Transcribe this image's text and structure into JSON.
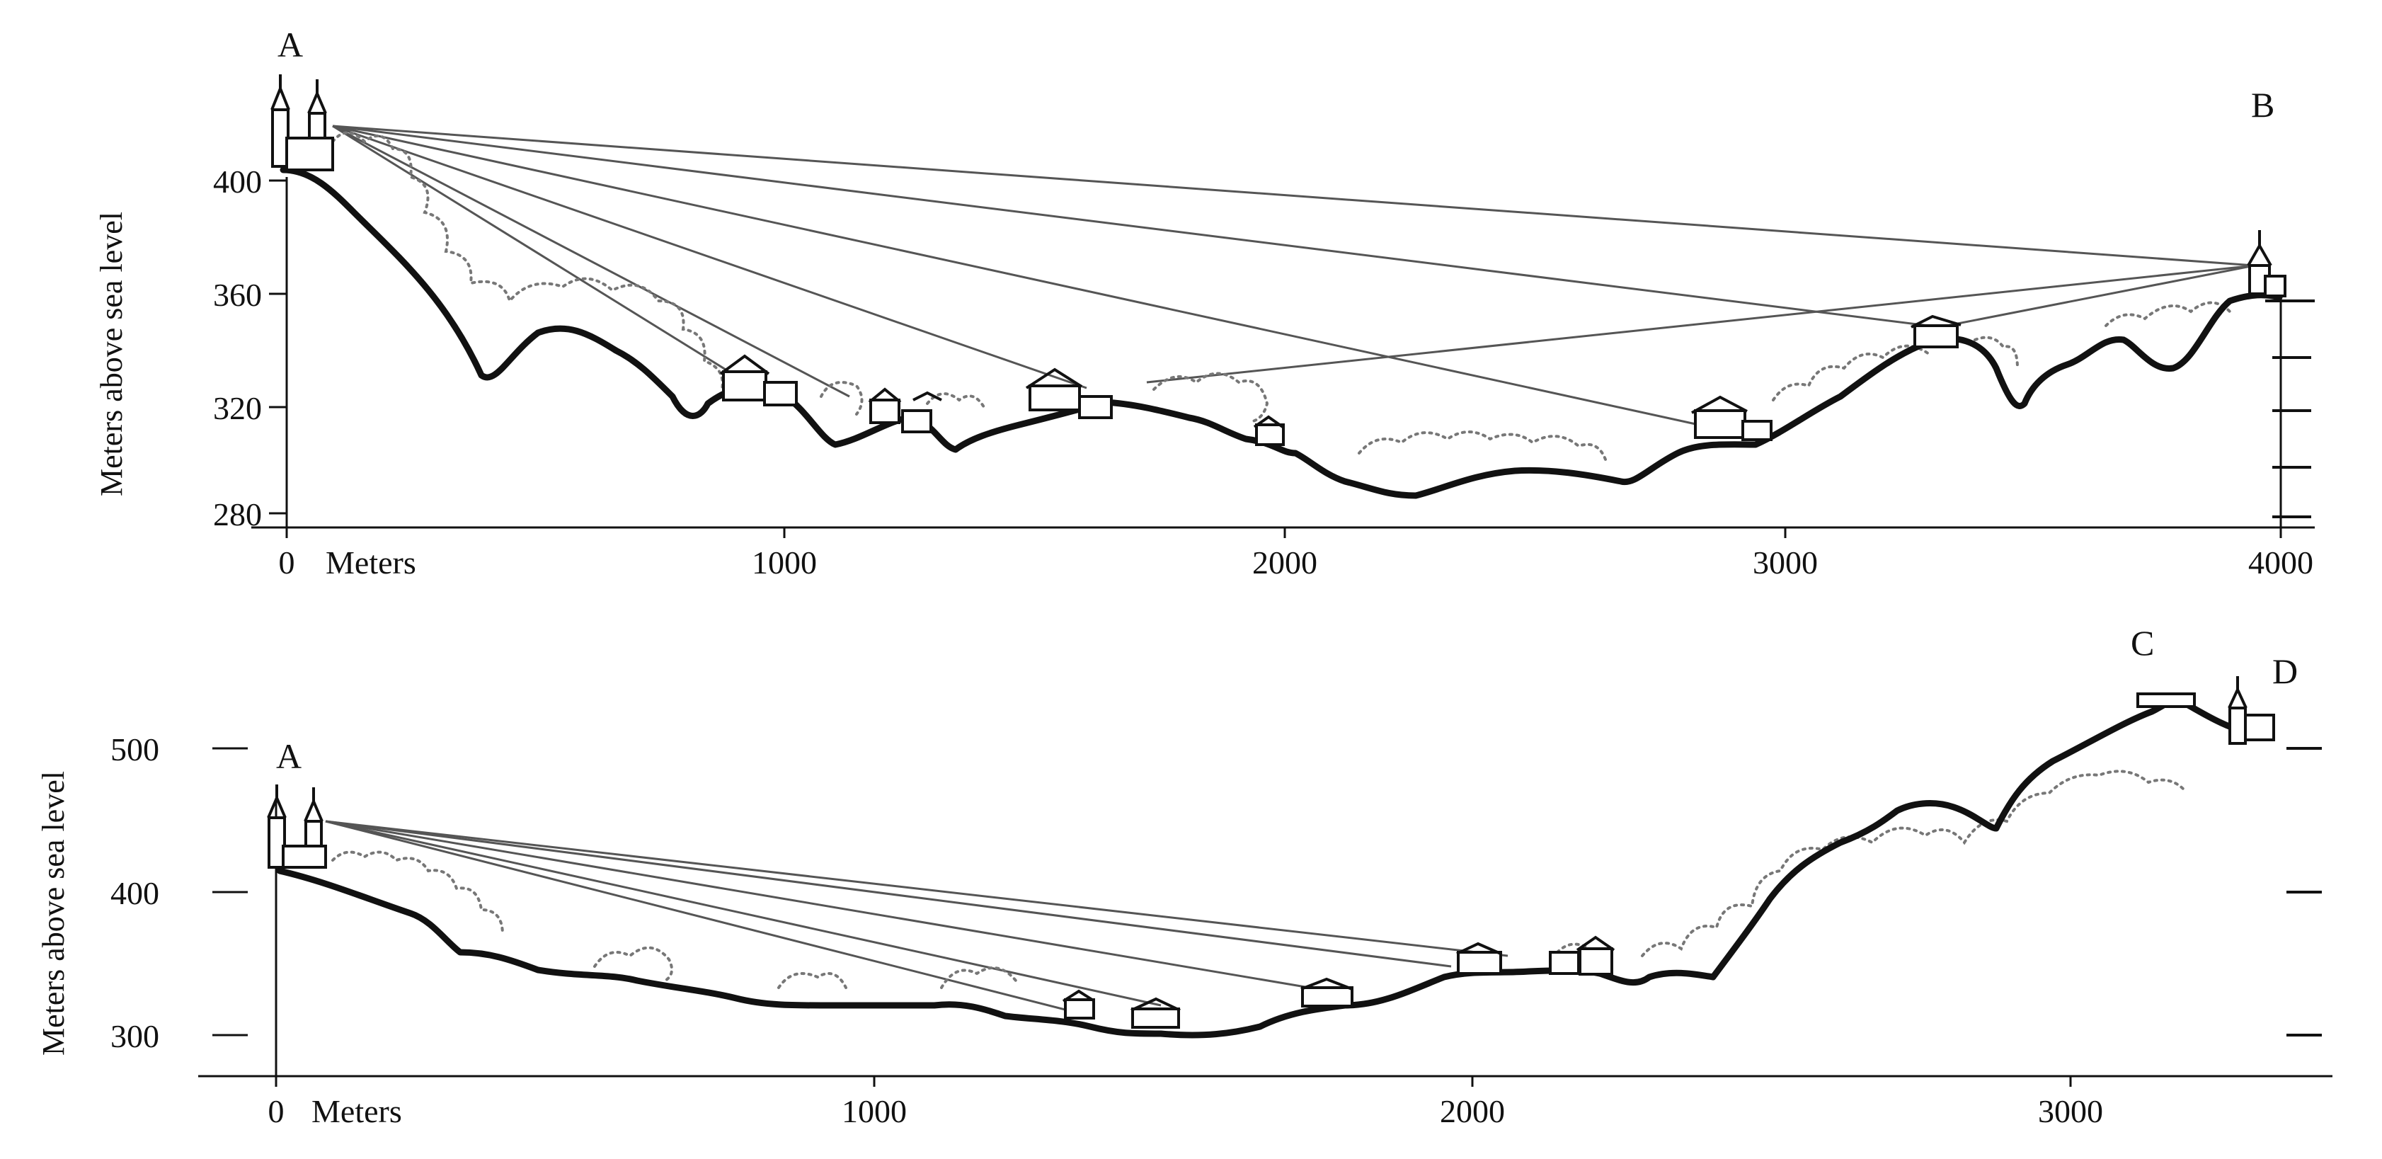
{
  "top_profile": {
    "point_left": "A",
    "point_right": "B",
    "y_axis_label": "Meters above sea level",
    "y_ticks": [
      "400",
      "360",
      "320",
      "280"
    ],
    "x_ticks": [
      "0",
      "1000",
      "2000",
      "3000",
      "4000"
    ],
    "x_units": "Meters"
  },
  "bottom_profile": {
    "point_left": "A",
    "point_c": "C",
    "point_d": "D",
    "y_axis_label": "Meters above sea level",
    "y_ticks": [
      "500",
      "400",
      "300"
    ],
    "x_ticks": [
      "0",
      "1000",
      "2000",
      "3000"
    ],
    "x_units": "Meters"
  },
  "colors": {
    "ink": "#111111",
    "sight_line": "#555555",
    "foliage": "#777777",
    "background": "#ffffff"
  }
}
